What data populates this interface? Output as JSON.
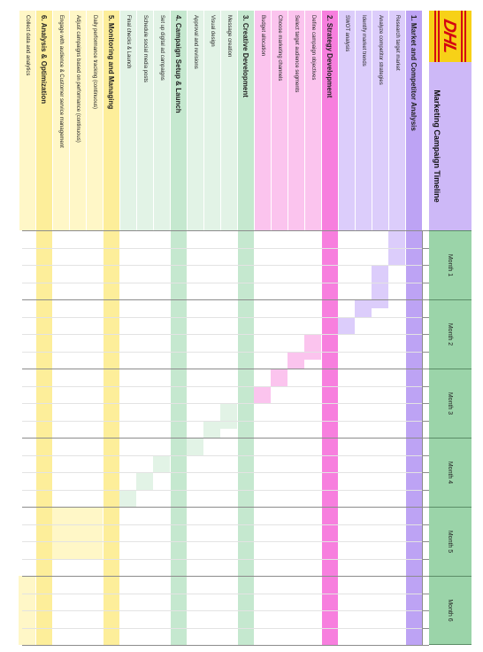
{
  "title": "Marketing Campaign Timeline",
  "logo": {
    "text": "DHL"
  },
  "months": [
    "Month 1",
    "Month 2",
    "Month 3",
    "Month 4",
    "Month 5",
    "Month 6"
  ],
  "colors": {
    "p1_label": "#dccdfb",
    "p1_head": "#bda3f4",
    "p1_bar": "#dccdfb",
    "p2_label": "#fbc4ee",
    "p2_head": "#f77fde",
    "p2_bar": "#fbc4ee",
    "p3_label": "#e2f3e6",
    "p3_head": "#c5e8cf",
    "p3_bar": "#e2f3e6",
    "p4_label": "#e2f3e6",
    "p4_head": "#c5e8cf",
    "p4_bar": "#e2f3e6",
    "p5_label": "#fff7c7",
    "p5_head": "#fdee9a",
    "p5_bar": "#fff7c7",
    "p6_label": "#fff7c7",
    "p6_head": "#fdee9a",
    "p6_bar": "#fff7c7"
  },
  "rows": [
    {
      "type": "phase",
      "label": "1. Market and Competitor Analysis",
      "phase": 1,
      "band": [
        0,
        6
      ]
    },
    {
      "type": "task",
      "label": "Research target market",
      "phase": 1,
      "bar": [
        0,
        1
      ]
    },
    {
      "type": "task",
      "label": "Analyze competitor strategies",
      "phase": 1,
      "bar": [
        1,
        2.25
      ]
    },
    {
      "type": "task",
      "label": "Identify market trends",
      "phase": 1,
      "bar": [
        2,
        2.5
      ]
    },
    {
      "type": "task",
      "label": "SWOT analysis",
      "phase": 1,
      "bar": [
        2.5,
        3
      ]
    },
    {
      "type": "phase",
      "label": "2. Strategy Development",
      "phase": 2,
      "band": [
        0,
        6
      ]
    },
    {
      "type": "task",
      "label": "Define campaign objectives",
      "phase": 2,
      "bar": [
        3,
        3.75
      ]
    },
    {
      "type": "task",
      "label": "Select target audience segments",
      "phase": 2,
      "bar": [
        3.5,
        4
      ]
    },
    {
      "type": "task",
      "label": "Choose marketing channels",
      "phase": 2,
      "bar": [
        4,
        4.5
      ]
    },
    {
      "type": "task",
      "label": "Budget allocation",
      "phase": 2,
      "bar": [
        4.5,
        5
      ]
    },
    {
      "type": "phase",
      "label": "3. Creative Development",
      "phase": 3,
      "band": [
        0,
        6
      ]
    },
    {
      "type": "task",
      "label": "Message creation",
      "phase": 3,
      "bar": [
        5,
        5.75
      ]
    },
    {
      "type": "task",
      "label": "Visual design",
      "phase": 3,
      "bar": [
        5.5,
        6
      ]
    },
    {
      "type": "task",
      "label": "Approval and revisions",
      "phase": 3,
      "bar": [
        6,
        6.5
      ]
    },
    {
      "type": "phase",
      "label": "4. Campaign Setup & Launch",
      "phase": 4,
      "band": [
        0,
        6
      ]
    },
    {
      "type": "task",
      "label": "Set up digital ad campaigns",
      "phase": 4,
      "bar": [
        6.5,
        7
      ]
    },
    {
      "type": "task",
      "label": "Schedule social media posts",
      "phase": 4,
      "bar": [
        7,
        7.5
      ]
    },
    {
      "type": "task",
      "label": "Final checks & Launch",
      "phase": 4,
      "bar": [
        7.5,
        8
      ]
    },
    {
      "type": "phase",
      "label": "5. Monitoring and Managing",
      "phase": 5,
      "band": [
        0,
        6
      ]
    },
    {
      "type": "task",
      "label": "Daily performance tracking (continuous)",
      "phase": 5,
      "bar": [
        8,
        9.5
      ]
    },
    {
      "type": "task",
      "label": "Adjust campaigns based on performance (continuous)",
      "phase": 5,
      "bar": [
        8,
        9.5
      ]
    },
    {
      "type": "task",
      "label": "Engage with audience & Customer service management",
      "phase": 5,
      "bar": [
        8,
        9.5
      ]
    },
    {
      "type": "phase",
      "label": "6. Analysis & Optimization",
      "phase": 6,
      "band": [
        0,
        6
      ]
    },
    {
      "type": "task",
      "label": "Collect data and analytics",
      "phase": 6,
      "bar": [
        10,
        12
      ]
    }
  ]
}
